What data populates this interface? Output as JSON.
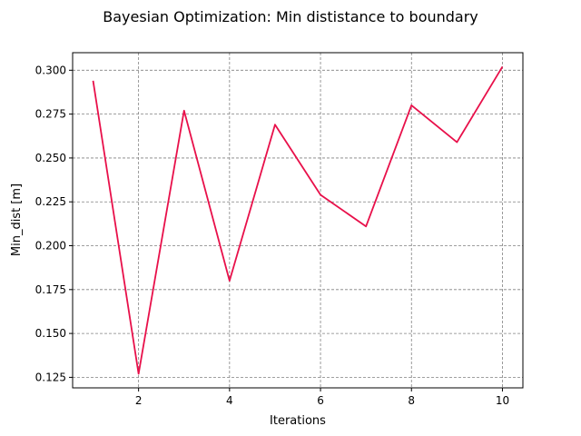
{
  "chart_data": {
    "type": "line",
    "title": "Bayesian Optimization: Min dististance to boundary",
    "xlabel": "Iterations",
    "ylabel": "Min_dist [m]",
    "x": [
      1,
      2,
      3,
      4,
      5,
      6,
      7,
      8,
      9,
      10
    ],
    "series": [
      {
        "color": "#e8104a",
        "values": [
          0.294,
          0.127,
          0.277,
          0.18,
          0.269,
          0.229,
          0.211,
          0.28,
          0.259,
          0.302
        ]
      }
    ],
    "xlim": [
      0.55,
      10.45
    ],
    "ylim": [
      0.119,
      0.31
    ],
    "xticks": [
      2,
      4,
      6,
      8,
      10
    ],
    "xtick_labels": [
      "2",
      "4",
      "6",
      "8",
      "10"
    ],
    "yticks": [
      0.125,
      0.15,
      0.175,
      0.2,
      0.225,
      0.25,
      0.275,
      0.3
    ],
    "ytick_labels": [
      "0.125",
      "0.150",
      "0.175",
      "0.200",
      "0.225",
      "0.250",
      "0.275",
      "0.300"
    ],
    "grid": true,
    "legend": "none"
  }
}
